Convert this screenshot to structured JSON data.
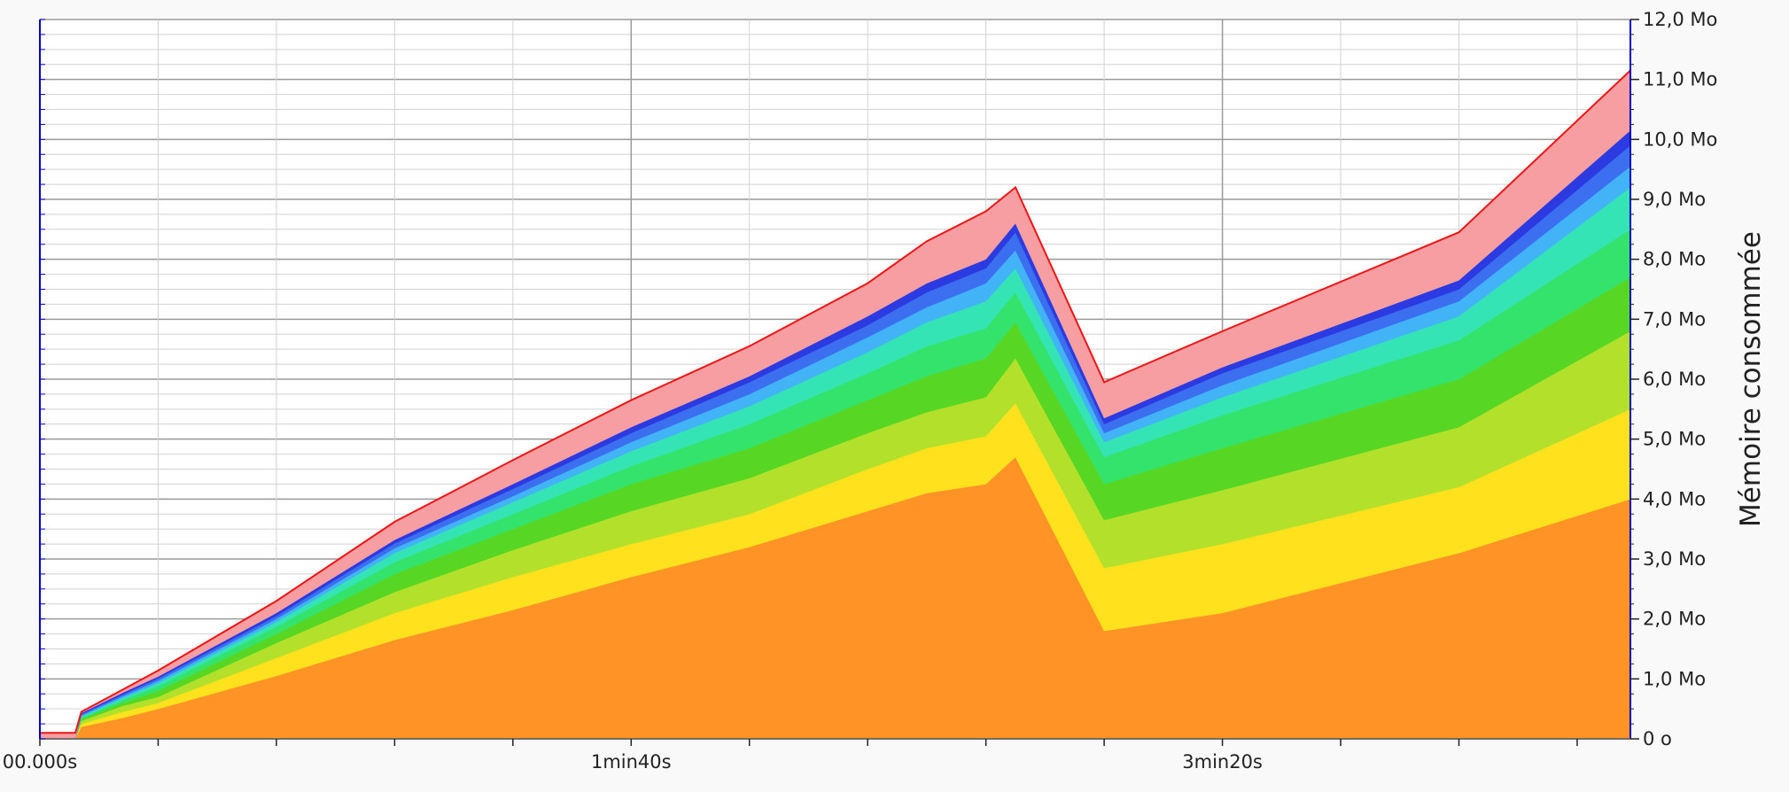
{
  "chart_data": {
    "type": "area",
    "ylabel": "Mémoire consommée",
    "y_tick_labels": [
      "0 o",
      "1,0 Mo",
      "2,0 Mo",
      "3,0 Mo",
      "4,0 Mo",
      "5,0 Mo",
      "6,0 Mo",
      "7,0 Mo",
      "8,0 Mo",
      "9,0 Mo",
      "10,0 Mo",
      "11,0 Mo",
      "12,0 Mo"
    ],
    "x_tick_labels": [
      {
        "seconds": 0,
        "label": "00.000s"
      },
      {
        "seconds": 100,
        "label": "1min40s"
      },
      {
        "seconds": 200,
        "label": "3min20s"
      }
    ],
    "xlim": [
      0,
      269
    ],
    "ylim": [
      0,
      12
    ],
    "y_unit": "Mo",
    "grid": true,
    "stack_order": "bottom-to-top",
    "x": [
      0,
      6,
      7,
      14,
      20,
      40,
      60,
      80,
      100,
      120,
      140,
      150,
      160,
      165,
      180,
      200,
      240,
      269
    ],
    "series": [
      {
        "color": "#ff9326",
        "values": [
          0,
          0,
          0.2,
          0.35,
          0.5,
          1.05,
          1.65,
          2.15,
          2.7,
          3.2,
          3.8,
          4.1,
          4.25,
          4.7,
          1.8,
          2.1,
          3.1,
          4.0
        ]
      },
      {
        "color": "#ffe11d",
        "values": [
          0,
          0,
          0.05,
          0.1,
          0.1,
          0.3,
          0.45,
          0.55,
          0.55,
          0.55,
          0.7,
          0.75,
          0.8,
          0.9,
          1.05,
          1.15,
          1.1,
          1.5
        ]
      },
      {
        "color": "#b3e12b",
        "values": [
          0,
          0,
          0.05,
          0.1,
          0.1,
          0.25,
          0.35,
          0.45,
          0.55,
          0.6,
          0.6,
          0.6,
          0.65,
          0.75,
          0.8,
          0.9,
          1.0,
          1.3
        ]
      },
      {
        "color": "#57d723",
        "values": [
          0,
          0,
          0.03,
          0.05,
          0.1,
          0.15,
          0.3,
          0.35,
          0.45,
          0.5,
          0.55,
          0.6,
          0.65,
          0.6,
          0.6,
          0.7,
          0.8,
          0.9
        ]
      },
      {
        "color": "#34e36c",
        "values": [
          0,
          0,
          0.02,
          0.05,
          0.08,
          0.12,
          0.2,
          0.25,
          0.3,
          0.4,
          0.45,
          0.5,
          0.5,
          0.5,
          0.45,
          0.55,
          0.65,
          0.8
        ]
      },
      {
        "color": "#35e4b4",
        "values": [
          0,
          0,
          0.02,
          0.03,
          0.05,
          0.08,
          0.15,
          0.2,
          0.25,
          0.3,
          0.35,
          0.4,
          0.45,
          0.4,
          0.25,
          0.3,
          0.4,
          0.7
        ]
      },
      {
        "color": "#42b3f6",
        "values": [
          0,
          0,
          0.02,
          0.03,
          0.04,
          0.05,
          0.08,
          0.1,
          0.15,
          0.2,
          0.25,
          0.25,
          0.3,
          0.3,
          0.15,
          0.2,
          0.25,
          0.35
        ]
      },
      {
        "color": "#3c6ff0",
        "values": [
          0,
          0,
          0.02,
          0.03,
          0.04,
          0.05,
          0.08,
          0.12,
          0.15,
          0.2,
          0.2,
          0.25,
          0.25,
          0.3,
          0.15,
          0.2,
          0.2,
          0.35
        ]
      },
      {
        "color": "#2b3ae1",
        "values": [
          0,
          0,
          0.02,
          0.03,
          0.03,
          0.05,
          0.06,
          0.08,
          0.1,
          0.1,
          0.15,
          0.15,
          0.15,
          0.15,
          0.1,
          0.1,
          0.15,
          0.25
        ]
      },
      {
        "color": "#f69ea2",
        "values": [
          0.1,
          0.1,
          0.02,
          0.05,
          0.1,
          0.2,
          0.3,
          0.4,
          0.45,
          0.5,
          0.55,
          0.7,
          0.8,
          0.6,
          0.6,
          0.6,
          0.8,
          1.0
        ]
      }
    ],
    "peak_line_color": "#ee1515"
  }
}
